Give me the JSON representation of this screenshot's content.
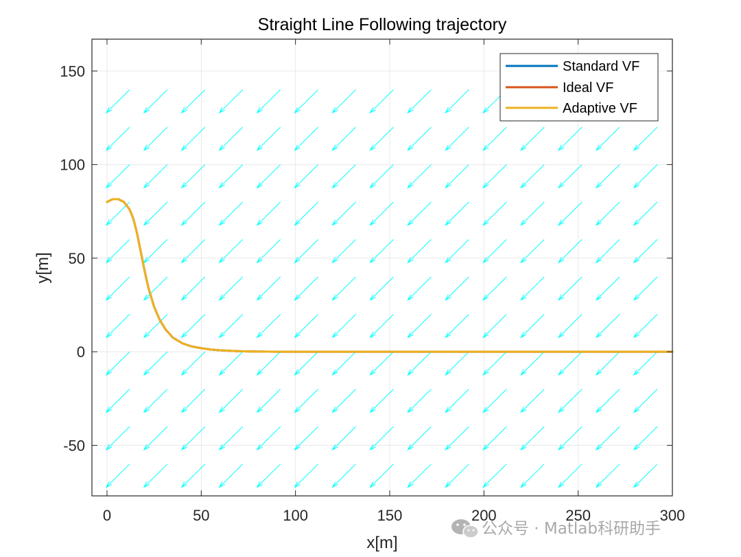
{
  "chart_data": {
    "type": "line",
    "title": "Straight Line Following trajectory",
    "xlabel": "x[m]",
    "ylabel": "y[m]",
    "xlim": [
      -8,
      300
    ],
    "ylim": [
      -77,
      167
    ],
    "xticks": [
      0,
      50,
      100,
      150,
      200,
      250,
      300
    ],
    "yticks": [
      -50,
      0,
      50,
      100,
      150
    ],
    "grid": true,
    "legend_location": "top-right",
    "series": [
      {
        "name": "Standard VF",
        "color": "#0072BD",
        "x": [
          0,
          3,
          6,
          9,
          12,
          14,
          16,
          18,
          20,
          22,
          25,
          28,
          31,
          35,
          40,
          45,
          50,
          55,
          60,
          65,
          70,
          80,
          90,
          100,
          150,
          200,
          250,
          300
        ],
        "y": [
          80,
          81.5,
          81.5,
          80,
          76,
          71,
          63,
          53,
          43,
          34,
          24,
          17,
          12,
          7.5,
          4.5,
          2.8,
          1.9,
          1.2,
          0.8,
          0.5,
          0.3,
          0.1,
          0,
          0,
          0,
          0,
          0,
          0
        ]
      },
      {
        "name": "Ideal VF",
        "color": "#D95319",
        "x": [
          0,
          3,
          6,
          9,
          12,
          14,
          16,
          18,
          20,
          22,
          25,
          28,
          31,
          35,
          40,
          45,
          50,
          55,
          60,
          65,
          70,
          80,
          90,
          100,
          150,
          200,
          250,
          300
        ],
        "y": [
          80,
          81.5,
          81.5,
          80,
          76,
          71,
          63,
          53,
          43,
          34,
          24,
          17,
          12,
          7.5,
          4.5,
          2.8,
          1.9,
          1.2,
          0.8,
          0.5,
          0.3,
          0.1,
          0,
          0,
          0,
          0,
          0,
          0
        ]
      },
      {
        "name": "Adaptive VF",
        "color": "#EDB120",
        "x": [
          0,
          3,
          6,
          9,
          12,
          14,
          16,
          18,
          20,
          22,
          25,
          28,
          31,
          35,
          40,
          45,
          50,
          55,
          60,
          65,
          70,
          80,
          90,
          100,
          150,
          200,
          250,
          300
        ],
        "y": [
          80,
          81.5,
          81.5,
          80,
          76,
          71,
          63,
          53,
          43,
          34,
          24,
          17,
          12,
          7.5,
          4.5,
          2.8,
          1.9,
          1.2,
          0.8,
          0.5,
          0.3,
          0.1,
          0,
          0,
          0,
          0,
          0,
          0
        ]
      }
    ],
    "vector_field": {
      "color": "#00FFFF",
      "x_start": -8,
      "x_step": 20,
      "x_count": 16,
      "y_start": -60,
      "y_step": 20,
      "y_count": 11,
      "direction": [
        -1,
        -1
      ],
      "arrow_length": 17.5
    }
  },
  "watermark": {
    "icon": "wechat-icon",
    "text": "公众号 · Matlab科研助手"
  }
}
